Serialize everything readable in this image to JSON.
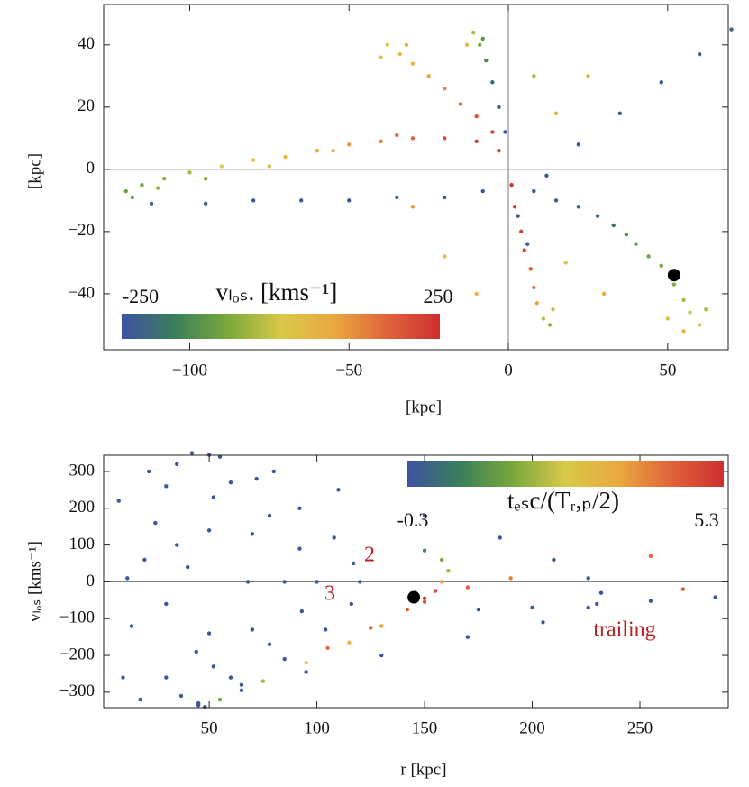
{
  "chart_data": [
    {
      "type": "scatter",
      "xlabel": "[kpc]",
      "ylabel": "[kpc]",
      "xlim": [
        -127,
        69
      ],
      "ylim": [
        -58,
        53
      ],
      "xticks": [
        {
          "value": -100,
          "label": "−100"
        },
        {
          "value": -50,
          "label": "−50"
        },
        0,
        50
      ],
      "yticks": [
        {
          "value": -40,
          "label": "−40"
        },
        {
          "value": -20,
          "label": "−20"
        },
        0,
        20,
        40
      ],
      "zero_lines": [
        "x",
        "y"
      ],
      "colorbar": {
        "label": "vₗₒₛ. [kms⁻¹]",
        "min": -250,
        "max": 250,
        "colors": [
          "#3d52a1",
          "#3a7f5a",
          "#79a83c",
          "#d9c94a",
          "#e9a93f",
          "#e0643a",
          "#cd2f2f"
        ]
      },
      "highlight": {
        "x": 52,
        "y": -34
      },
      "x": [
        -3,
        -10,
        -20,
        -30,
        -40,
        -50,
        -60,
        -70,
        -80,
        -90,
        -100,
        -108,
        -115,
        -120,
        -118,
        -110,
        -95,
        -75,
        -55,
        -35,
        -112,
        -95,
        -80,
        -65,
        -50,
        -35,
        -20,
        -8,
        -5,
        -10,
        -15,
        -20,
        -25,
        -30,
        -34,
        -38,
        -40,
        -32,
        -1,
        -3,
        -5,
        -7,
        -9,
        -11,
        -13,
        -8,
        1,
        2,
        4,
        5,
        7,
        8,
        9,
        11,
        13,
        14,
        3,
        6,
        8,
        15,
        22,
        28,
        33,
        37,
        40,
        44,
        48,
        52,
        55,
        57,
        60,
        55,
        50,
        62,
        12,
        22,
        35,
        48,
        60,
        70,
        15,
        25,
        -20,
        -10,
        30,
        8,
        -30,
        18
      ],
      "y": [
        6,
        9,
        10,
        10,
        9,
        8,
        6,
        4,
        3,
        1,
        -1,
        -3,
        -5,
        -7,
        -9,
        -6,
        -3,
        1,
        6,
        11,
        -11,
        -11,
        -10,
        -10,
        -10,
        -9,
        -9,
        -7,
        12,
        17,
        21,
        26,
        30,
        34,
        37,
        40,
        36,
        40,
        12,
        20,
        28,
        35,
        40,
        44,
        40,
        42,
        -5,
        -12,
        -20,
        -26,
        -32,
        -38,
        -43,
        -48,
        -50,
        -45,
        -15,
        -24,
        -7,
        -10,
        -12,
        -15,
        -18,
        -21,
        -24,
        -28,
        -31,
        -37,
        -42,
        -46,
        -50,
        -52,
        -48,
        -45,
        -2,
        8,
        18,
        28,
        37,
        45,
        18,
        30,
        -28,
        -40,
        -40,
        30,
        -12,
        -30
      ],
      "c": [
        230,
        220,
        200,
        170,
        140,
        100,
        60,
        40,
        20,
        0,
        -40,
        -70,
        -90,
        -100,
        -110,
        -60,
        -80,
        30,
        80,
        160,
        -200,
        -220,
        -230,
        -230,
        -235,
        -235,
        -240,
        -240,
        210,
        190,
        170,
        130,
        80,
        50,
        30,
        10,
        0,
        40,
        -240,
        -230,
        -200,
        -150,
        -80,
        -40,
        30,
        -120,
        240,
        230,
        220,
        210,
        180,
        140,
        90,
        -30,
        -60,
        -20,
        -235,
        -230,
        -240,
        -230,
        -225,
        -215,
        -190,
        -120,
        -110,
        -100,
        -90,
        -70,
        -40,
        -10,
        30,
        40,
        20,
        -30,
        -240,
        -235,
        -230,
        -230,
        -225,
        -210,
        60,
        40,
        40,
        60,
        80,
        -40,
        100,
        20
      ]
    },
    {
      "type": "scatter",
      "xlabel": "r [kpc]",
      "ylabel": "vₗₒₛ [kms⁻¹]",
      "xlim": [
        1,
        291
      ],
      "ylim": [
        -342,
        344
      ],
      "xticks": [
        50,
        100,
        150,
        200,
        250
      ],
      "yticks": [
        {
          "value": -300,
          "label": "−300"
        },
        {
          "value": -200,
          "label": "−200"
        },
        {
          "value": -100,
          "label": "−100"
        },
        0,
        100,
        200,
        300
      ],
      "zero_lines": [
        "y"
      ],
      "colorbar": {
        "label": "tₑₛc/(Tᵣ,ₚ/2)",
        "min": -0.3,
        "max": 5.3,
        "colors": [
          "#3d52a1",
          "#3a7f5a",
          "#79a83c",
          "#d9c94a",
          "#e9a93f",
          "#e0643a",
          "#cd2f2f"
        ]
      },
      "annotations": [
        "2",
        "3",
        "trailing"
      ],
      "highlight": {
        "x": 145,
        "y": -42
      },
      "x": [
        55,
        80,
        110,
        150,
        185,
        210,
        226,
        232,
        226,
        205,
        170,
        130,
        95,
        65,
        45,
        50,
        72,
        92,
        108,
        117,
        120,
        116,
        104,
        85,
        65,
        48,
        42,
        60,
        78,
        92,
        100,
        93,
        78,
        60,
        45,
        35,
        52,
        70,
        85,
        70,
        52,
        37,
        30,
        50,
        68,
        50,
        30,
        175,
        200,
        230,
        255,
        285,
        55,
        75,
        95,
        115,
        130,
        142,
        150,
        155,
        158,
        161,
        158,
        150,
        105,
        125,
        150,
        170,
        190,
        255,
        270,
        8,
        14,
        20,
        10,
        25,
        30,
        12,
        40,
        44,
        22,
        18,
        35
      ],
      "y": [
        340,
        300,
        250,
        180,
        120,
        60,
        10,
        -30,
        -70,
        -110,
        -150,
        -200,
        -245,
        -295,
        -335,
        345,
        280,
        200,
        120,
        50,
        0,
        -60,
        -130,
        -210,
        -280,
        -340,
        350,
        270,
        180,
        90,
        0,
        -80,
        -170,
        -260,
        -330,
        320,
        230,
        130,
        0,
        -130,
        -230,
        -310,
        260,
        140,
        0,
        -140,
        -260,
        -75,
        -70,
        -60,
        -52,
        -42,
        -320,
        -270,
        -220,
        -165,
        -120,
        -75,
        -45,
        -25,
        0,
        30,
        60,
        85,
        -180,
        -125,
        -55,
        -15,
        10,
        70,
        -20,
        220,
        -120,
        60,
        -260,
        160,
        -60,
        10,
        40,
        -190,
        300,
        -320,
        100
      ],
      "c": [
        -0.2,
        -0.2,
        -0.2,
        -0.2,
        -0.2,
        -0.2,
        -0.2,
        -0.2,
        -0.2,
        -0.2,
        -0.2,
        -0.2,
        -0.2,
        -0.2,
        -0.2,
        -0.2,
        -0.2,
        -0.2,
        -0.2,
        -0.2,
        -0.2,
        -0.2,
        -0.2,
        -0.2,
        -0.2,
        -0.2,
        -0.2,
        -0.2,
        -0.2,
        -0.2,
        -0.2,
        -0.2,
        -0.2,
        -0.2,
        -0.2,
        -0.2,
        -0.2,
        -0.2,
        -0.2,
        -0.2,
        -0.2,
        -0.2,
        -0.2,
        -0.2,
        -0.2,
        -0.2,
        -0.2,
        -0.2,
        -0.2,
        -0.2,
        -0.2,
        -0.2,
        1.5,
        2,
        2.5,
        3,
        3.5,
        4.5,
        5,
        4.8,
        3.5,
        2,
        1.5,
        0.8,
        4.2,
        4.5,
        4.6,
        4.4,
        4,
        4.3,
        4.5,
        -0.2,
        -0.2,
        -0.2,
        -0.2,
        -0.2,
        -0.2,
        -0.2,
        -0.2,
        -0.2,
        -0.2,
        -0.2,
        -0.2
      ]
    }
  ]
}
